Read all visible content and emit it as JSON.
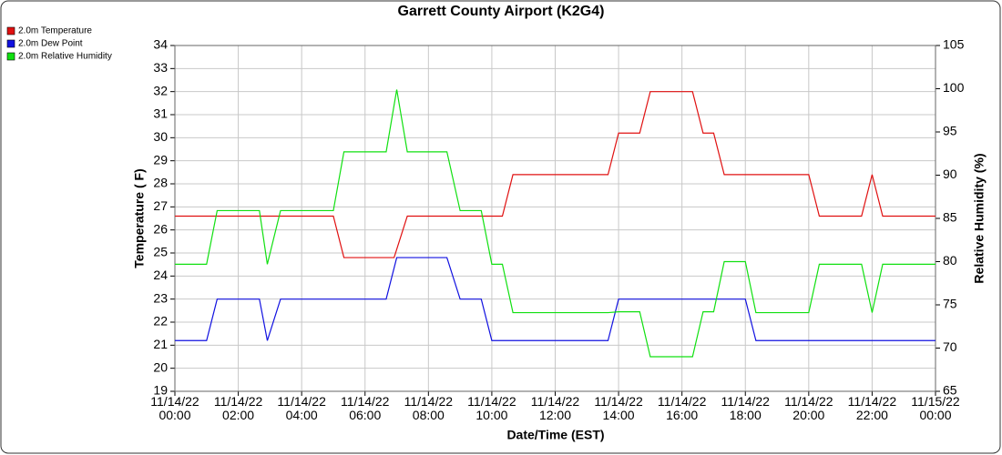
{
  "chart_data": {
    "type": "line",
    "title": "Garrett County Airport (K2G4)",
    "xlabel": "Date/Time (EST)",
    "ylabel": "Temperature ( F)",
    "y2label": "Relative Humidity (%)",
    "grid": true,
    "legend": "top-left",
    "ylim": [
      19,
      34
    ],
    "yticks": [
      19,
      20,
      21,
      22,
      23,
      24,
      25,
      26,
      27,
      28,
      29,
      30,
      31,
      32,
      33,
      34
    ],
    "y2lim": [
      65,
      105
    ],
    "y2ticks": [
      65,
      70,
      75,
      80,
      85,
      90,
      95,
      100,
      105
    ],
    "xlim": [
      "11/14/22 00:00",
      "11/15/22 00:00"
    ],
    "xticks": [
      "11/14/22 00:00",
      "11/14/22 02:00",
      "11/14/22 04:00",
      "11/14/22 06:00",
      "11/14/22 08:00",
      "11/14/22 10:00",
      "11/14/22 12:00",
      "11/14/22 14:00",
      "11/14/22 16:00",
      "11/14/22 18:00",
      "11/14/22 20:00",
      "11/14/22 22:00",
      "11/15/22 00:00"
    ],
    "series": [
      {
        "name": "2.0m Temperature",
        "color": "#e01010",
        "axis": "y",
        "x": [
          "11/14/22 00:00",
          "11/14/22 05:00",
          "11/14/22 05:20",
          "11/14/22 06:55",
          "11/14/22 07:20",
          "11/14/22 10:20",
          "11/14/22 10:40",
          "11/14/22 13:40",
          "11/14/22 14:00",
          "11/14/22 14:40",
          "11/14/22 15:00",
          "11/14/22 16:20",
          "11/14/22 16:40",
          "11/14/22 17:00",
          "11/14/22 17:20",
          "11/14/22 20:00",
          "11/14/22 20:20",
          "11/14/22 21:40",
          "11/14/22 22:00",
          "11/14/22 22:20",
          "11/15/22 00:00"
        ],
        "values": [
          26.6,
          26.6,
          24.8,
          24.8,
          26.6,
          26.6,
          28.4,
          28.4,
          30.2,
          30.2,
          32,
          32,
          30.2,
          30.2,
          28.4,
          28.4,
          26.6,
          26.6,
          28.4,
          26.6,
          26.6
        ]
      },
      {
        "name": "2.0m Dew Point",
        "color": "#1010e0",
        "axis": "y",
        "x": [
          "11/14/22 00:00",
          "11/14/22 01:00",
          "11/14/22 01:20",
          "11/14/22 02:40",
          "11/14/22 02:55",
          "11/14/22 03:20",
          "11/14/22 06:40",
          "11/14/22 07:00",
          "11/14/22 08:35",
          "11/14/22 09:00",
          "11/14/22 09:40",
          "11/14/22 10:00",
          "11/14/22 13:40",
          "11/14/22 14:00",
          "11/14/22 18:00",
          "11/14/22 18:20",
          "11/15/22 00:00"
        ],
        "values": [
          21.2,
          21.2,
          23,
          23,
          21.2,
          23,
          23,
          24.8,
          24.8,
          23,
          23,
          21.2,
          21.2,
          23,
          23,
          21.2,
          21.2
        ]
      },
      {
        "name": "2.0m Relative Humidity",
        "color": "#10e010",
        "axis": "y2",
        "x": [
          "11/14/22 00:00",
          "11/14/22 01:00",
          "11/14/22 01:20",
          "11/14/22 02:40",
          "11/14/22 02:55",
          "11/14/22 03:20",
          "11/14/22 05:00",
          "11/14/22 05:20",
          "11/14/22 06:40",
          "11/14/22 07:00",
          "11/14/22 07:20",
          "11/14/22 08:35",
          "11/14/22 09:00",
          "11/14/22 09:40",
          "11/14/22 10:00",
          "11/14/22 10:20",
          "11/14/22 10:40",
          "11/14/22 13:40",
          "11/14/22 14:00",
          "11/14/22 14:40",
          "11/14/22 15:00",
          "11/14/22 16:20",
          "11/14/22 16:40",
          "11/14/22 17:00",
          "11/14/22 17:20",
          "11/14/22 18:00",
          "11/14/22 18:20",
          "11/14/22 20:00",
          "11/14/22 20:20",
          "11/14/22 21:40",
          "11/14/22 22:00",
          "11/14/22 22:20",
          "11/15/22 00:00"
        ],
        "values": [
          79.7,
          79.7,
          85.9,
          85.9,
          79.7,
          85.9,
          85.9,
          92.7,
          92.7,
          99.9,
          92.7,
          92.7,
          85.9,
          85.9,
          79.7,
          79.7,
          74.1,
          74.1,
          74.2,
          74.2,
          69,
          69,
          74.2,
          74.2,
          80,
          80,
          74.1,
          74.1,
          79.7,
          79.7,
          74.1,
          79.7,
          79.7
        ]
      }
    ]
  }
}
